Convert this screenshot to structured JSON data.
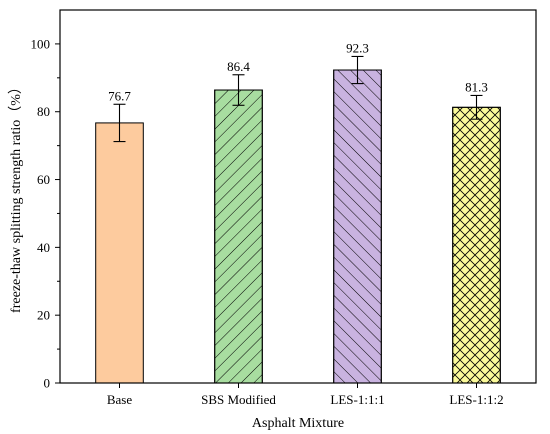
{
  "chart_data": {
    "type": "bar",
    "title": "",
    "xlabel": "Asphalt Mixture",
    "ylabel": "freeze-thaw splitting strength ratio（%）",
    "ylim": [
      0,
      110
    ],
    "yticks": [
      0,
      20,
      40,
      60,
      80,
      100
    ],
    "grid": false,
    "categories": [
      "Base",
      "SBS Modified",
      "LES-1:1:1",
      "LES-1:1:2"
    ],
    "values": [
      76.7,
      86.4,
      92.3,
      81.3
    ],
    "value_labels": [
      "76.7",
      "86.4",
      "92.3",
      "81.3"
    ],
    "error": [
      5.5,
      4.5,
      4.0,
      3.5
    ],
    "colors": [
      "#FDCB9E",
      "#A8DDA0",
      "#C9B3E0",
      "#FBFA9A"
    ],
    "patterns": [
      "none",
      "diagonal-right",
      "diagonal-left",
      "crosshatch"
    ]
  }
}
